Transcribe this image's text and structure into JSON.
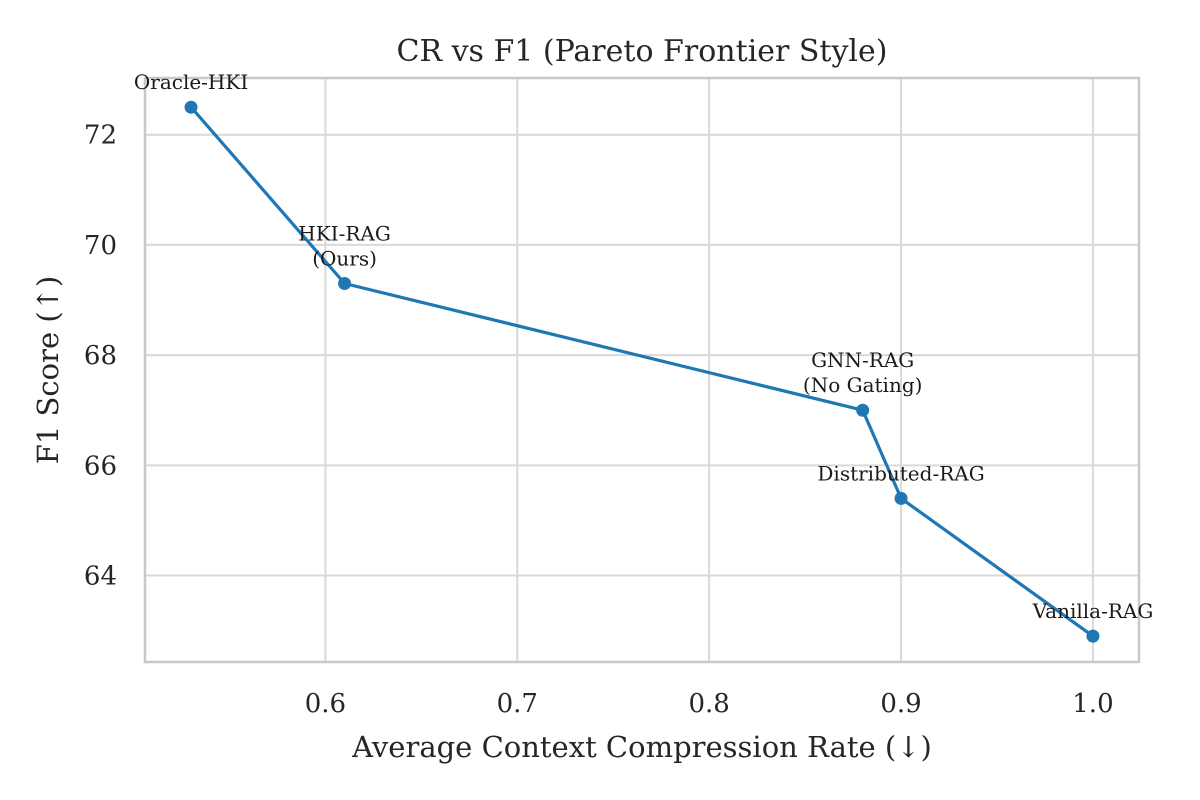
{
  "chart_data": {
    "type": "line",
    "title": "CR vs F1 (Pareto Frontier Style)",
    "xlabel": "Average Context Compression Rate (↓)",
    "ylabel": "F1 Score (↑)",
    "xlim": [
      0.506,
      1.024
    ],
    "ylim": [
      62.43,
      73.03
    ],
    "xticks": [
      0.6,
      0.7,
      0.8,
      0.9,
      1.0
    ],
    "xtick_labels": [
      "0.6",
      "0.7",
      "0.8",
      "0.9",
      "1.0"
    ],
    "yticks": [
      64,
      66,
      68,
      70,
      72
    ],
    "ytick_labels": [
      "64",
      "66",
      "68",
      "70",
      "72"
    ],
    "grid": true,
    "legend": false,
    "series_color": "#1f77b4",
    "points": [
      {
        "x": 0.53,
        "y": 72.5,
        "label": [
          "Oracle-HKI"
        ]
      },
      {
        "x": 0.61,
        "y": 69.3,
        "label": [
          "HKI-RAG",
          "(Ours)"
        ]
      },
      {
        "x": 0.88,
        "y": 67.0,
        "label": [
          "GNN-RAG",
          "(No Gating)"
        ]
      },
      {
        "x": 0.9,
        "y": 65.4,
        "label": [
          "Distributed-RAG"
        ]
      },
      {
        "x": 1.0,
        "y": 62.9,
        "label": [
          "Vanilla-RAG"
        ]
      }
    ]
  }
}
